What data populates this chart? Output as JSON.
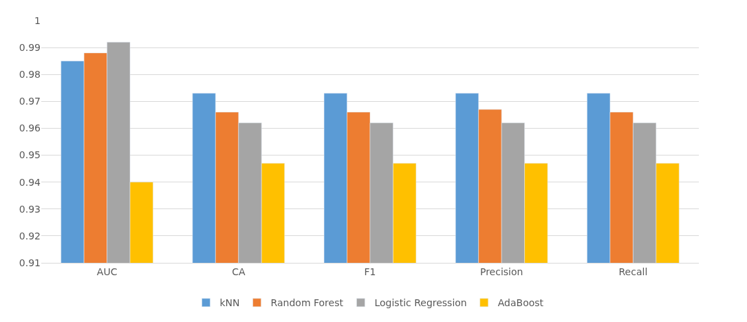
{
  "chart_data": {
    "type": "bar",
    "categories": [
      "AUC",
      "CA",
      "F1",
      "Precision",
      "Recall"
    ],
    "series": [
      {
        "name": "kNN",
        "color": "#5b9bd5",
        "values": [
          0.985,
          0.973,
          0.973,
          0.973,
          0.973
        ]
      },
      {
        "name": "Random Forest",
        "color": "#ed7d31",
        "values": [
          0.988,
          0.966,
          0.966,
          0.967,
          0.966
        ]
      },
      {
        "name": "Logistic Regression",
        "color": "#a5a5a5",
        "values": [
          0.992,
          0.962,
          0.962,
          0.962,
          0.962
        ]
      },
      {
        "name": "AdaBoost",
        "color": "#ffc000",
        "values": [
          0.94,
          0.947,
          0.947,
          0.947,
          0.947
        ]
      }
    ],
    "ylim": [
      0.91,
      1
    ],
    "yticks": [
      0.91,
      0.92,
      0.93,
      0.94,
      0.95,
      0.96,
      0.97,
      0.98,
      0.99,
      1
    ],
    "grid": "y",
    "legend": "bottom"
  }
}
